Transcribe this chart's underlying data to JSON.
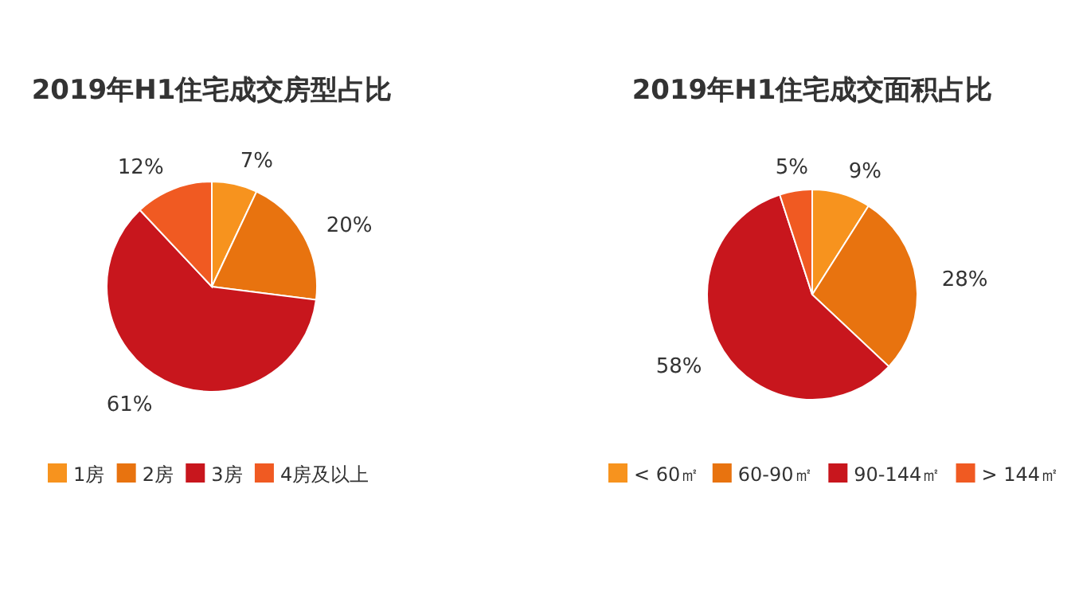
{
  "chart_data": [
    {
      "type": "pie",
      "title": "2019年H1住宅成交房型占比",
      "categories": [
        "1房",
        "2房",
        "3房",
        "4房及以上"
      ],
      "values": [
        7,
        20,
        61,
        12
      ],
      "value_labels": [
        "7%",
        "20%",
        "61%",
        "12%"
      ],
      "colors": [
        "#f7931e",
        "#e8730f",
        "#c8161d",
        "#f05a22"
      ],
      "legend": "bottom"
    },
    {
      "type": "pie",
      "title": "2019年H1住宅成交面积占比",
      "categories": [
        "< 60㎡",
        "60-90㎡",
        "90-144㎡",
        "> 144㎡"
      ],
      "values": [
        9,
        28,
        58,
        5
      ],
      "value_labels": [
        "9%",
        "28%",
        "58%",
        "5%"
      ],
      "colors": [
        "#f7931e",
        "#e8730f",
        "#c8161d",
        "#f05a22"
      ],
      "legend": "bottom"
    }
  ]
}
